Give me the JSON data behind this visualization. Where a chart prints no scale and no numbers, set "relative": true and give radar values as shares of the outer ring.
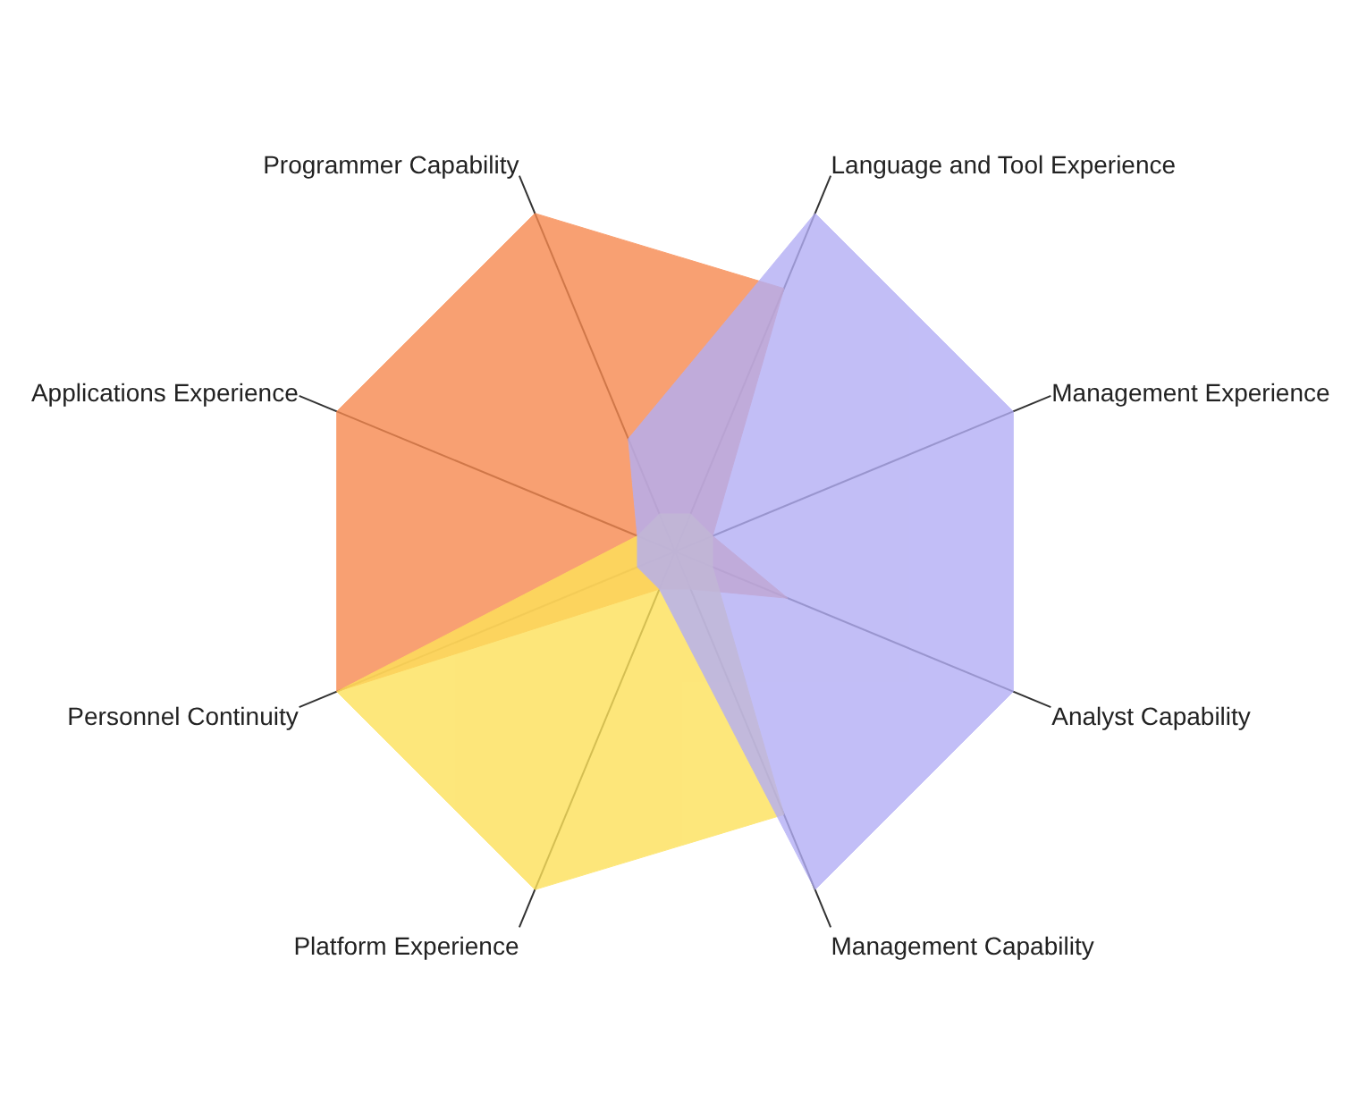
{
  "chart_data": {
    "type": "radar",
    "relative": true,
    "categories": [
      "Language and Tool Experience",
      "Management Experience",
      "Analyst Capability",
      "Management Capability",
      "Platform Experience",
      "Personnel Continuity",
      "Applications Experience",
      "Programmer Capability"
    ],
    "series": [
      {
        "color": "#f7894f",
        "values": [
          0.7,
          0.1,
          0.3,
          0.1,
          0.1,
          0.9,
          0.9,
          0.9
        ]
      },
      {
        "color": "#fde15a",
        "values": [
          0.1,
          0.1,
          0.1,
          0.7,
          0.9,
          0.9,
          0.1,
          0.1
        ]
      },
      {
        "color": "#b3aef5",
        "values": [
          0.9,
          0.9,
          0.9,
          0.9,
          0.1,
          0.1,
          0.1,
          0.3
        ]
      }
    ]
  }
}
